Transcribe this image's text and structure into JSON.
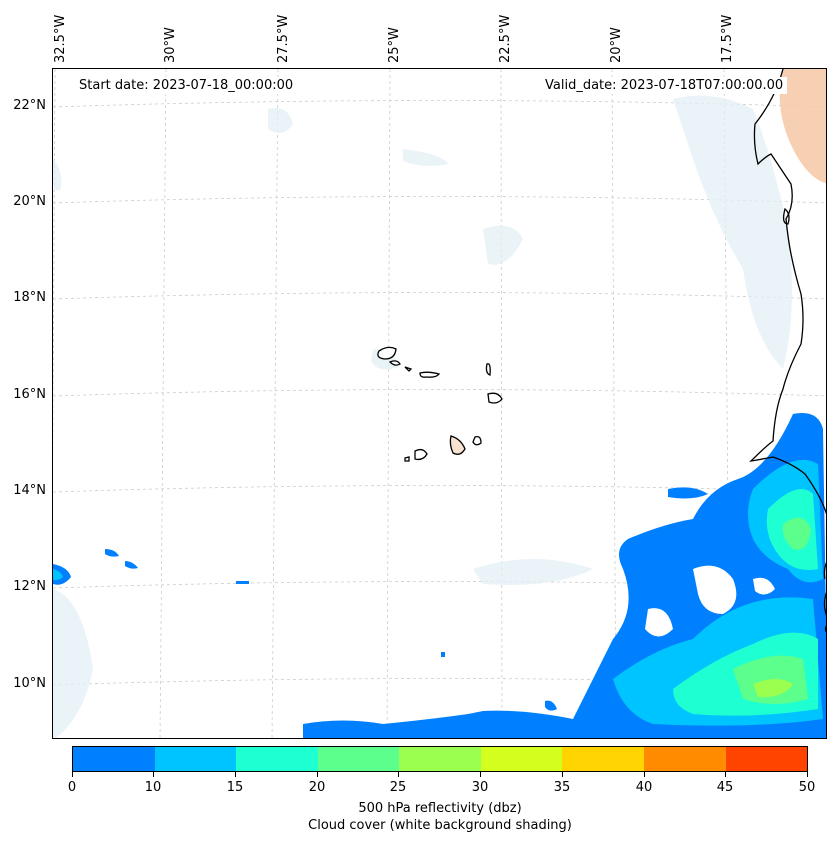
{
  "header": {
    "start_date": "Start date: 2023-07-18_00:00:00",
    "valid_date": "Valid_date: 2023-07-18T07:00:00.00"
  },
  "map": {
    "longitude_labels": [
      "32.5°W",
      "30°W",
      "27.5°W",
      "25°W",
      "22.5°W",
      "20°W",
      "17.5°W"
    ],
    "latitude_labels": [
      "22°N",
      "20°N",
      "18°N",
      "16°N",
      "14°N",
      "12°N",
      "10°N"
    ],
    "features": [
      "Cape Verde islands",
      "West African coastline"
    ]
  },
  "colorbar": {
    "ticks": [
      "0",
      "10",
      "15",
      "20",
      "25",
      "30",
      "35",
      "40",
      "45",
      "50"
    ],
    "colors": [
      "#0080ff",
      "#00c4ff",
      "#1effd2",
      "#5cff8c",
      "#9aff4e",
      "#d4ff1e",
      "#ffd400",
      "#ff8c00",
      "#ff4400"
    ],
    "label_line1": "500 hPa reflectivity (dbz)",
    "label_line2": "Cloud cover (white background shading)"
  },
  "colors": {
    "cloud_shade": "#e3eff4",
    "warm_shade": "#f6c8a6",
    "coast": "#000000"
  }
}
